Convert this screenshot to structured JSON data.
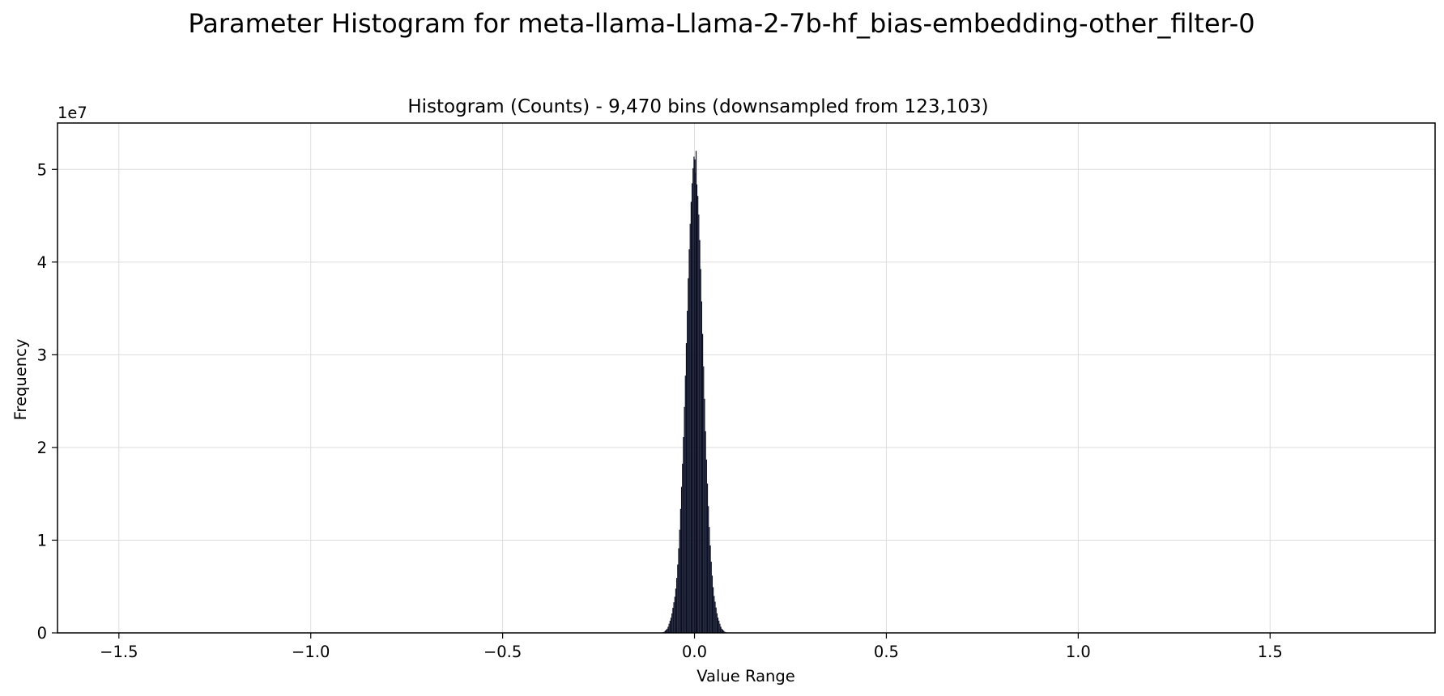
{
  "chart_data": {
    "type": "bar",
    "title": "Parameter Histogram for meta-llama-Llama-2-7b-hf_bias-embedding-other_filter-0",
    "subtitle": "Histogram (Counts) - 9,470 bins (downsampled from 123,103)",
    "xlabel": "Value Range",
    "ylabel": "Frequency",
    "y_offset_label": "1e7",
    "xlim": [
      -1.66,
      1.93
    ],
    "ylim": [
      0,
      55000000
    ],
    "x_ticks": [
      -1.5,
      -1.0,
      -0.5,
      0.0,
      0.5,
      1.0,
      1.5
    ],
    "x_tick_labels": [
      "−1.5",
      "−1.0",
      "−0.5",
      "0.0",
      "0.5",
      "1.0",
      "1.5"
    ],
    "y_ticks": [
      0,
      10000000,
      20000000,
      30000000,
      40000000,
      50000000
    ],
    "y_tick_labels": [
      "0",
      "1",
      "2",
      "3",
      "4",
      "5"
    ],
    "grid": true,
    "bar_color": "#0b0f24",
    "peak": {
      "x": 0.0,
      "y": 52000000
    },
    "x": [
      -0.09,
      -0.08,
      -0.07,
      -0.06,
      -0.05,
      -0.045,
      -0.04,
      -0.035,
      -0.03,
      -0.025,
      -0.02,
      -0.015,
      -0.01,
      -0.005,
      -0.002,
      0.0,
      0.002,
      0.005,
      0.01,
      0.015,
      0.02,
      0.025,
      0.03,
      0.035,
      0.04,
      0.045,
      0.05,
      0.06,
      0.07,
      0.08,
      0.09
    ],
    "values": [
      0,
      80000,
      500000,
      1800000,
      4200000,
      6500000,
      10000000,
      14500000,
      19500000,
      26000000,
      33000000,
      40000000,
      45500000,
      49500000,
      51000000,
      52000000,
      50500000,
      49000000,
      46500000,
      41000000,
      34000000,
      27000000,
      20000000,
      14800000,
      10300000,
      6800000,
      4300000,
      1800000,
      500000,
      80000,
      0
    ]
  }
}
